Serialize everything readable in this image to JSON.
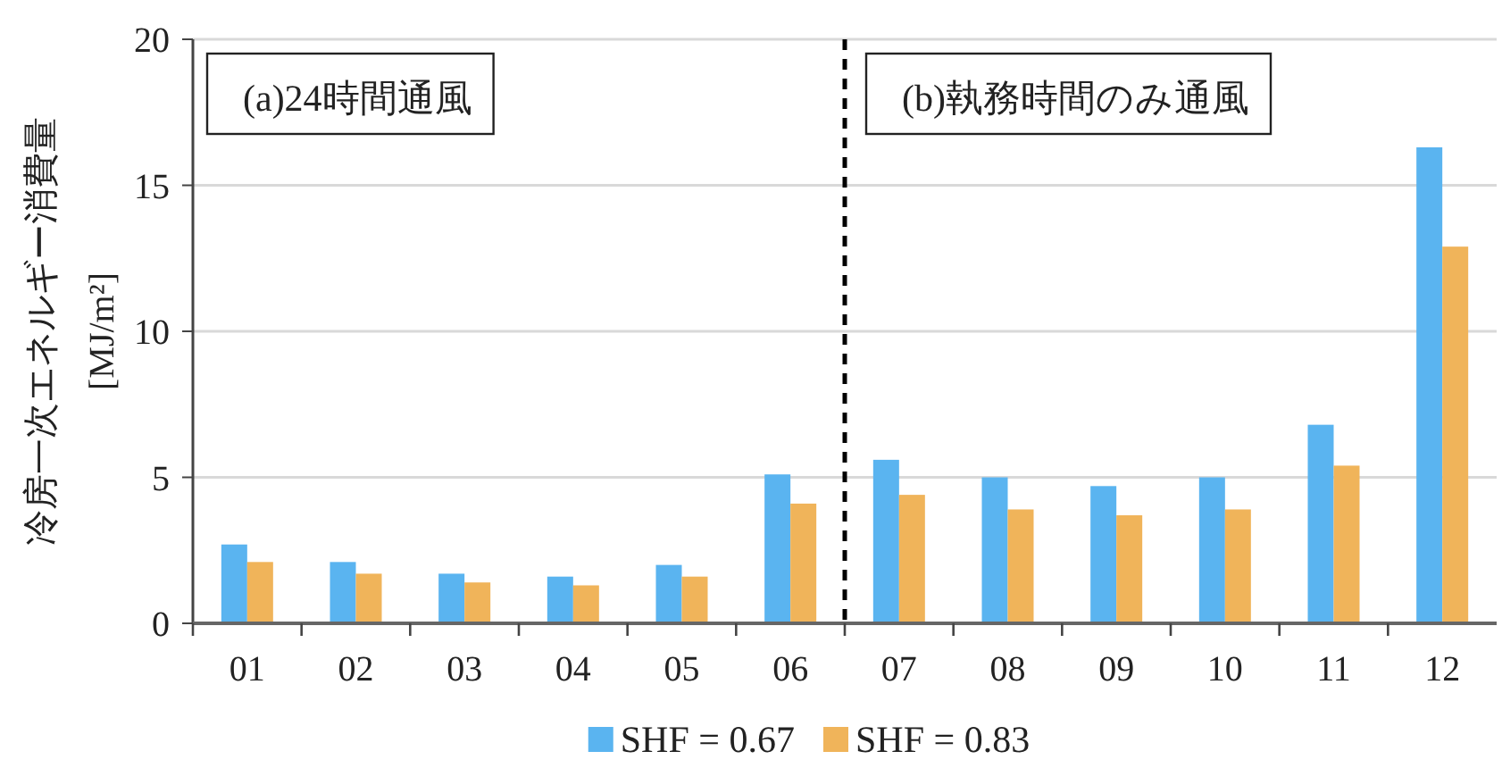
{
  "chart_data": {
    "type": "bar",
    "ylabel": "冷房一次エネルギー消費量\n[MJ/m²]",
    "x": [
      1,
      2,
      3,
      4,
      5,
      6,
      7,
      8,
      9,
      10,
      11,
      12
    ],
    "series": [
      {
        "name": "SHF = 0.67",
        "color": "#5ab4f0",
        "values": [
          2.7,
          2.1,
          1.7,
          1.6,
          2.0,
          5.1,
          5.6,
          5.0,
          4.7,
          5.0,
          6.8,
          16.3
        ]
      },
      {
        "name": "SHF = 0.83",
        "color": "#f0b45a",
        "values": [
          2.1,
          1.7,
          1.4,
          1.3,
          1.6,
          4.1,
          4.4,
          3.9,
          3.7,
          3.9,
          5.4,
          12.9
        ]
      }
    ],
    "xlim": [
      0.5,
      12.5
    ],
    "xticks": [
      {
        "value": 0.5,
        "label": null
      },
      {
        "value": 1,
        "label": "01"
      },
      {
        "value": 1.5,
        "label": null
      },
      {
        "value": 2,
        "label": "02"
      },
      {
        "value": 2.5,
        "label": null
      },
      {
        "value": 3,
        "label": "03"
      },
      {
        "value": 3.5,
        "label": null
      },
      {
        "value": 4,
        "label": "04"
      },
      {
        "value": 4.5,
        "label": null
      },
      {
        "value": 5,
        "label": "05"
      },
      {
        "value": 5.5,
        "label": null
      },
      {
        "value": 6,
        "label": "06"
      },
      {
        "value": 6.5,
        "label": null
      },
      {
        "value": 7,
        "label": "07"
      },
      {
        "value": 7.5,
        "label": null
      },
      {
        "value": 8,
        "label": "08"
      },
      {
        "value": 8.5,
        "label": null
      },
      {
        "value": 9,
        "label": "09"
      },
      {
        "value": 9.5,
        "label": null
      },
      {
        "value": 10,
        "label": "10"
      },
      {
        "value": 10.5,
        "label": null
      },
      {
        "value": 11,
        "label": "11"
      },
      {
        "value": 11.5,
        "label": null
      },
      {
        "value": 12,
        "label": "12"
      }
    ],
    "ylim": [
      0,
      20
    ],
    "yticks": [
      0,
      5,
      10,
      15,
      20
    ],
    "grid": "y",
    "legend": "bottom",
    "ref_lines": [
      {
        "axis": "x",
        "value": 6.5,
        "color": "#000000",
        "line_style": "dashed"
      }
    ],
    "annotations": [
      "(a)24時間通風",
      "(b)執務時間のみ通風"
    ]
  }
}
